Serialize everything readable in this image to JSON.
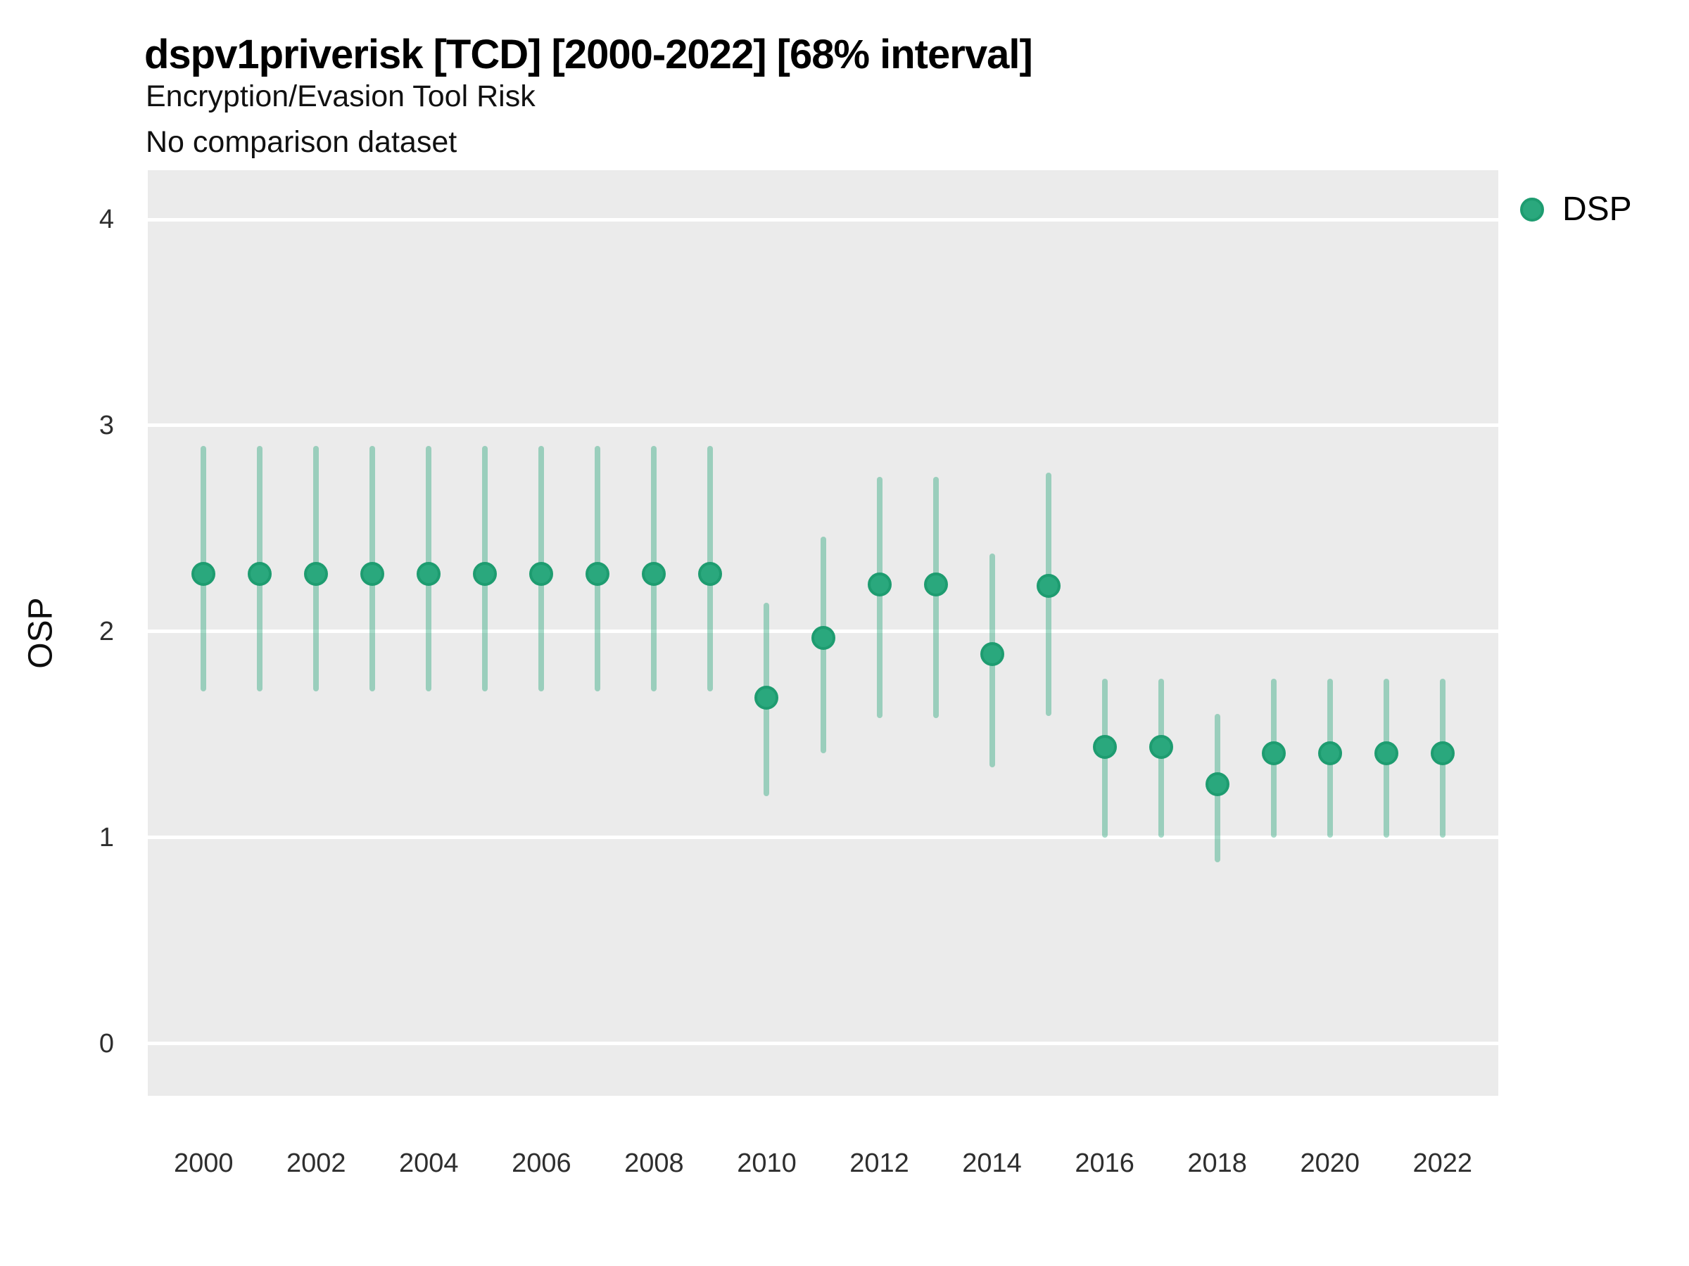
{
  "header": {
    "title": "dspv1priverisk [TCD] [2000-2022] [68% interval]",
    "subtitle": "Encryption/Evasion Tool Risk",
    "note": "No comparison dataset"
  },
  "legend": {
    "items": [
      {
        "label": "DSP",
        "color": "#2aa87d"
      }
    ]
  },
  "colors": {
    "point_fill": "#2aa87d",
    "point_ring": "#1e9c70",
    "interval_bar": "rgba(43,167,123,0.42)",
    "panel_background": "#ebebeb",
    "gridline": "#ffffff"
  },
  "chart_data": {
    "type": "pointrange",
    "title": "dspv1priverisk [TCD] [2000-2022] [68% interval]",
    "subtitle": "Encryption/Evasion Tool Risk",
    "note": "No comparison dataset",
    "xlabel": "",
    "ylabel": "OSP",
    "interval_level": "68%",
    "grid": "major horizontal white lines on gray panel",
    "legend_position": "right-top",
    "ylim": [
      -0.253,
      4.239
    ],
    "xlim": [
      1999.01,
      2022.99
    ],
    "y_ticks": [
      0,
      1,
      2,
      3,
      4
    ],
    "x_ticks": [
      2000,
      2002,
      2004,
      2006,
      2008,
      2010,
      2012,
      2014,
      2016,
      2018,
      2020,
      2022
    ],
    "series": [
      {
        "name": "DSP",
        "points": [
          {
            "year": 2000,
            "value": 2.28,
            "lo": 1.71,
            "hi": 2.9
          },
          {
            "year": 2001,
            "value": 2.28,
            "lo": 1.71,
            "hi": 2.9
          },
          {
            "year": 2002,
            "value": 2.28,
            "lo": 1.71,
            "hi": 2.9
          },
          {
            "year": 2003,
            "value": 2.28,
            "lo": 1.71,
            "hi": 2.9
          },
          {
            "year": 2004,
            "value": 2.28,
            "lo": 1.71,
            "hi": 2.9
          },
          {
            "year": 2005,
            "value": 2.28,
            "lo": 1.71,
            "hi": 2.9
          },
          {
            "year": 2006,
            "value": 2.28,
            "lo": 1.71,
            "hi": 2.9
          },
          {
            "year": 2007,
            "value": 2.28,
            "lo": 1.71,
            "hi": 2.9
          },
          {
            "year": 2008,
            "value": 2.28,
            "lo": 1.71,
            "hi": 2.9
          },
          {
            "year": 2009,
            "value": 2.28,
            "lo": 1.71,
            "hi": 2.9
          },
          {
            "year": 2010,
            "value": 1.68,
            "lo": 1.2,
            "hi": 2.14
          },
          {
            "year": 2011,
            "value": 1.97,
            "lo": 1.41,
            "hi": 2.46
          },
          {
            "year": 2012,
            "value": 2.23,
            "lo": 1.58,
            "hi": 2.75
          },
          {
            "year": 2013,
            "value": 2.23,
            "lo": 1.58,
            "hi": 2.75
          },
          {
            "year": 2014,
            "value": 1.89,
            "lo": 1.34,
            "hi": 2.38
          },
          {
            "year": 2015,
            "value": 2.22,
            "lo": 1.59,
            "hi": 2.77
          },
          {
            "year": 2016,
            "value": 1.44,
            "lo": 1.0,
            "hi": 1.77
          },
          {
            "year": 2017,
            "value": 1.44,
            "lo": 1.0,
            "hi": 1.77
          },
          {
            "year": 2018,
            "value": 1.26,
            "lo": 0.88,
            "hi": 1.6
          },
          {
            "year": 2019,
            "value": 1.41,
            "lo": 1.0,
            "hi": 1.77
          },
          {
            "year": 2020,
            "value": 1.41,
            "lo": 1.0,
            "hi": 1.77
          },
          {
            "year": 2021,
            "value": 1.41,
            "lo": 1.0,
            "hi": 1.77
          },
          {
            "year": 2022,
            "value": 1.41,
            "lo": 1.0,
            "hi": 1.77
          }
        ]
      }
    ]
  }
}
